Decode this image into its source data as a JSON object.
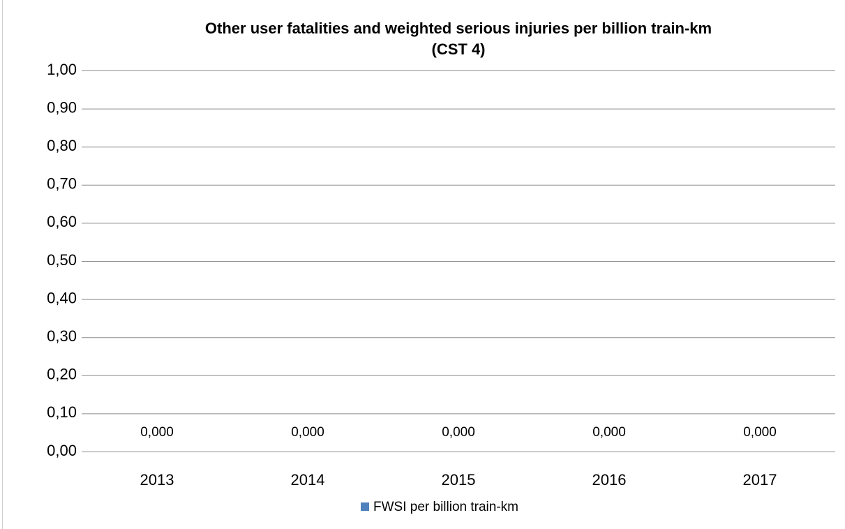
{
  "chart_data": {
    "type": "bar",
    "title": "Other user fatalities and weighted serious injuries per billion train-km",
    "subtitle": "(CST 4)",
    "categories": [
      "2013",
      "2014",
      "2015",
      "2016",
      "2017"
    ],
    "series": [
      {
        "name": "FWSI per billion train-km",
        "color": "#4f81bd",
        "values": [
          0,
          0,
          0,
          0,
          0
        ],
        "value_labels": [
          "0,000",
          "0,000",
          "0,000",
          "0,000",
          "0,000"
        ]
      }
    ],
    "ylim": [
      0,
      1
    ],
    "yticks": [
      {
        "value": 0,
        "label": "0,00"
      },
      {
        "value": 0.1,
        "label": "0,10"
      },
      {
        "value": 0.2,
        "label": "0,20"
      },
      {
        "value": 0.3,
        "label": "0,30"
      },
      {
        "value": 0.4,
        "label": "0,40"
      },
      {
        "value": 0.5,
        "label": "0,50"
      },
      {
        "value": 0.6,
        "label": "0,60"
      },
      {
        "value": 0.7,
        "label": "0,70"
      },
      {
        "value": 0.8,
        "label": "0,80"
      },
      {
        "value": 0.9,
        "label": "0,90"
      },
      {
        "value": 1,
        "label": "1,00"
      }
    ],
    "grid": true,
    "legend": "bottom"
  }
}
